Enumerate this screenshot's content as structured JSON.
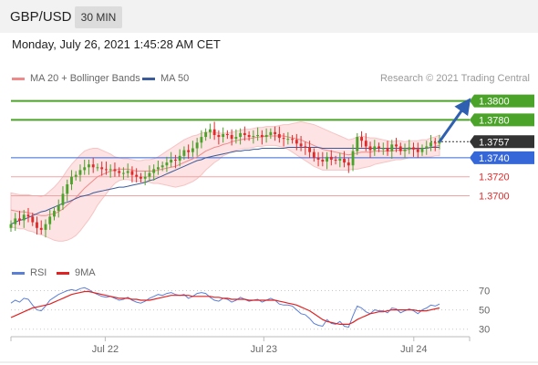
{
  "header": {
    "pair": "GBP/USD",
    "timeframe": "30 MIN"
  },
  "datetime": "Monday, July 26, 2021 1:45:28 AM CET",
  "legend": {
    "ma20": "MA 20 + Bollinger Bands",
    "ma50": "MA 50",
    "credit": "Research © 2021 Trading Central",
    "rsi": "RSI",
    "ma9": "9MA"
  },
  "colors": {
    "up": "#4ca32a",
    "down": "#e12b2b",
    "current": "#333333",
    "blue": "#3567d9",
    "pivot": "#f2a3a3",
    "ma20": "#f08a8a",
    "ma50": "#3b5b9a",
    "band": "#fde3e3",
    "rsi": "#5b7fd6",
    "rsi_ma": "#e02222"
  },
  "chart_data": [
    {
      "type": "candlestick",
      "title": "GBP/USD",
      "timeframe": "30 MIN",
      "ylim": [
        1.3635,
        1.3815
      ],
      "x_ticks": [
        "Jul 22",
        "Jul 23",
        "Jul 24"
      ],
      "levels": [
        {
          "value": 1.38,
          "label": "1.3800",
          "role": "resistance"
        },
        {
          "value": 1.378,
          "label": "1.3780",
          "role": "resistance"
        },
        {
          "value": 1.3757,
          "label": "1.3757",
          "role": "current"
        },
        {
          "value": 1.374,
          "label": "1.3740",
          "role": "pivot"
        },
        {
          "value": 1.372,
          "label": "1.3720",
          "role": "support"
        },
        {
          "value": 1.37,
          "label": "1.3700",
          "role": "support"
        }
      ],
      "close": [
        1.367,
        1.3676,
        1.3674,
        1.368,
        1.3678,
        1.3672,
        1.3666,
        1.3664,
        1.367,
        1.3678,
        1.3684,
        1.369,
        1.3702,
        1.3712,
        1.372,
        1.3722,
        1.3727,
        1.373,
        1.3733,
        1.373,
        1.373,
        1.3728,
        1.3727,
        1.3728,
        1.3726,
        1.3724,
        1.3724,
        1.3726,
        1.3722,
        1.372,
        1.3718,
        1.372,
        1.3724,
        1.3728,
        1.373,
        1.3732,
        1.3735,
        1.3738,
        1.3737,
        1.3742,
        1.3748,
        1.3746,
        1.375,
        1.3756,
        1.3762,
        1.3767,
        1.377,
        1.3764,
        1.3762,
        1.3765,
        1.3764,
        1.376,
        1.3762,
        1.3766,
        1.3764,
        1.3762,
        1.3763,
        1.3764,
        1.3762,
        1.3764,
        1.3767,
        1.3765,
        1.3761,
        1.376,
        1.376,
        1.3759,
        1.3755,
        1.3752,
        1.3751,
        1.3746,
        1.374,
        1.3738,
        1.3736,
        1.3741,
        1.3738,
        1.3737,
        1.3739,
        1.3735,
        1.3732,
        1.3747,
        1.3762,
        1.3758,
        1.3752,
        1.3748,
        1.3752,
        1.375,
        1.375,
        1.3747,
        1.3754,
        1.3752,
        1.3747,
        1.3749,
        1.3751,
        1.3749,
        1.3746,
        1.375,
        1.3752,
        1.3756,
        1.3755,
        1.3757
      ],
      "ma20": [
        1.3685,
        1.3684,
        1.3683,
        1.3683,
        1.3682,
        1.3681,
        1.368,
        1.3679,
        1.3679,
        1.368,
        1.3681,
        1.3683,
        1.3686,
        1.369,
        1.3694,
        1.3698,
        1.3703,
        1.3708,
        1.3712,
        1.3716,
        1.372,
        1.3722,
        1.3724,
        1.3726,
        1.3727,
        1.3728,
        1.3728,
        1.3728,
        1.3727,
        1.3726,
        1.3726,
        1.3726,
        1.3726,
        1.3726,
        1.3727,
        1.3728,
        1.3729,
        1.373,
        1.3731,
        1.3733,
        1.3735,
        1.3737,
        1.3739,
        1.3741,
        1.3744,
        1.3747,
        1.3749,
        1.3751,
        1.3752,
        1.3754,
        1.3755,
        1.3757,
        1.3758,
        1.3759,
        1.376,
        1.376,
        1.3761,
        1.3762,
        1.3762,
        1.3763,
        1.3763,
        1.3763,
        1.3763,
        1.3763,
        1.3762,
        1.3761,
        1.376,
        1.3759,
        1.3757,
        1.3755,
        1.3753,
        1.3751,
        1.3749,
        1.3748,
        1.3747,
        1.3746,
        1.3745,
        1.3744,
        1.3743,
        1.3744,
        1.3745,
        1.3746,
        1.3746,
        1.3746,
        1.3747,
        1.3747,
        1.3747,
        1.3747,
        1.3747,
        1.3748,
        1.3748,
        1.3748,
        1.3749,
        1.3749,
        1.3749,
        1.375,
        1.375,
        1.3751,
        1.3752,
        1.3753
      ],
      "bb_width": [
        0.0018,
        0.0018,
        0.0018,
        0.0018,
        0.0019,
        0.0019,
        0.002,
        0.002,
        0.0022,
        0.0025,
        0.0028,
        0.0031,
        0.0034,
        0.0037,
        0.0039,
        0.004,
        0.004,
        0.0039,
        0.0037,
        0.0034,
        0.003,
        0.0026,
        0.0022,
        0.0018,
        0.0014,
        0.0012,
        0.0011,
        0.0011,
        0.0011,
        0.0011,
        0.0011,
        0.0012,
        0.0012,
        0.0013,
        0.0014,
        0.0016,
        0.0018,
        0.002,
        0.0022,
        0.0023,
        0.0024,
        0.0024,
        0.0024,
        0.0023,
        0.0022,
        0.002,
        0.0018,
        0.0016,
        0.0014,
        0.0012,
        0.0011,
        0.001,
        0.001,
        0.001,
        0.001,
        0.001,
        0.001,
        0.001,
        0.001,
        0.001,
        0.001,
        0.001,
        0.0011,
        0.0012,
        0.0013,
        0.0015,
        0.0017,
        0.0019,
        0.002,
        0.0021,
        0.0022,
        0.0022,
        0.0022,
        0.0021,
        0.002,
        0.0019,
        0.0018,
        0.0017,
        0.0016,
        0.0016,
        0.0017,
        0.0017,
        0.0016,
        0.0015,
        0.0014,
        0.0013,
        0.0012,
        0.0011,
        0.001,
        0.001,
        0.001,
        0.0009,
        0.0009,
        0.0009,
        0.0009,
        0.0009,
        0.0009,
        0.001,
        0.001,
        0.0011
      ],
      "ma50": [
        1.367,
        1.3672,
        1.3674,
        1.3675,
        1.3677,
        1.3679,
        1.3681,
        1.3683,
        1.3684,
        1.3686,
        1.3688,
        1.369,
        1.3692,
        1.3693,
        1.3695,
        1.3697,
        1.3699,
        1.37,
        1.3701,
        1.3703,
        1.3704,
        1.3705,
        1.3706,
        1.3707,
        1.3708,
        1.3709,
        1.3709,
        1.371,
        1.3711,
        1.3712,
        1.3713,
        1.3714,
        1.3716,
        1.3717,
        1.3719,
        1.3721,
        1.3723,
        1.3725,
        1.3727,
        1.3729,
        1.3731,
        1.3733,
        1.3735,
        1.3737,
        1.3738,
        1.374,
        1.3741,
        1.3742,
        1.3743,
        1.3744,
        1.3745,
        1.3746,
        1.3747,
        1.3747,
        1.3748,
        1.3748,
        1.3749,
        1.3749,
        1.375,
        1.375,
        1.375,
        1.375,
        1.375,
        1.375,
        1.3751,
        1.3751,
        1.3751,
        1.3751,
        1.3751,
        1.3751,
        1.3751,
        1.3751,
        1.375,
        1.375,
        1.375,
        1.375,
        1.375,
        1.375,
        1.375,
        1.375,
        1.375,
        1.375,
        1.375,
        1.375,
        1.375,
        1.375,
        1.375,
        1.375,
        1.375,
        1.375,
        1.375,
        1.375,
        1.375,
        1.375,
        1.375,
        1.375,
        1.375,
        1.3751,
        1.3751,
        1.3751
      ],
      "forecast_target": 1.38
    },
    {
      "type": "line",
      "title": "RSI",
      "ylim": [
        25,
        78
      ],
      "y_ticks": [
        70,
        50,
        30
      ],
      "series": [
        {
          "name": "RSI",
          "values": [
            57,
            60,
            58,
            62,
            61,
            55,
            50,
            49,
            54,
            60,
            63,
            66,
            68,
            70,
            71,
            70,
            72,
            73,
            71,
            68,
            66,
            64,
            63,
            64,
            62,
            60,
            61,
            63,
            60,
            58,
            57,
            59,
            62,
            64,
            66,
            65,
            67,
            68,
            66,
            65,
            66,
            62,
            64,
            67,
            68,
            67,
            63,
            60,
            59,
            62,
            61,
            58,
            60,
            63,
            61,
            59,
            60,
            61,
            58,
            60,
            62,
            60,
            56,
            55,
            55,
            54,
            50,
            46,
            45,
            41,
            36,
            34,
            33,
            40,
            36,
            35,
            38,
            33,
            32,
            44,
            54,
            52,
            48,
            46,
            50,
            49,
            49,
            47,
            52,
            51,
            47,
            49,
            51,
            49,
            46,
            50,
            52,
            55,
            54,
            56
          ]
        },
        {
          "name": "9MA",
          "values": [
            42,
            44,
            46,
            48,
            50,
            52,
            53,
            54,
            55,
            56,
            58,
            60,
            62,
            64,
            66,
            67,
            68,
            69,
            69,
            68,
            67,
            66,
            65,
            64,
            63,
            62,
            62,
            62,
            61,
            61,
            60,
            60,
            60,
            61,
            62,
            63,
            64,
            65,
            65,
            65,
            65,
            65,
            64,
            64,
            64,
            64,
            64,
            63,
            63,
            62,
            62,
            61,
            61,
            61,
            61,
            60,
            60,
            60,
            60,
            60,
            60,
            60,
            59,
            58,
            57,
            56,
            55,
            53,
            51,
            49,
            46,
            43,
            40,
            38,
            37,
            36,
            35,
            35,
            35,
            37,
            40,
            42,
            44,
            46,
            47,
            48,
            48,
            49,
            50,
            50,
            50,
            50,
            50,
            50,
            49,
            49,
            49,
            50,
            51,
            52
          ]
        }
      ]
    }
  ]
}
